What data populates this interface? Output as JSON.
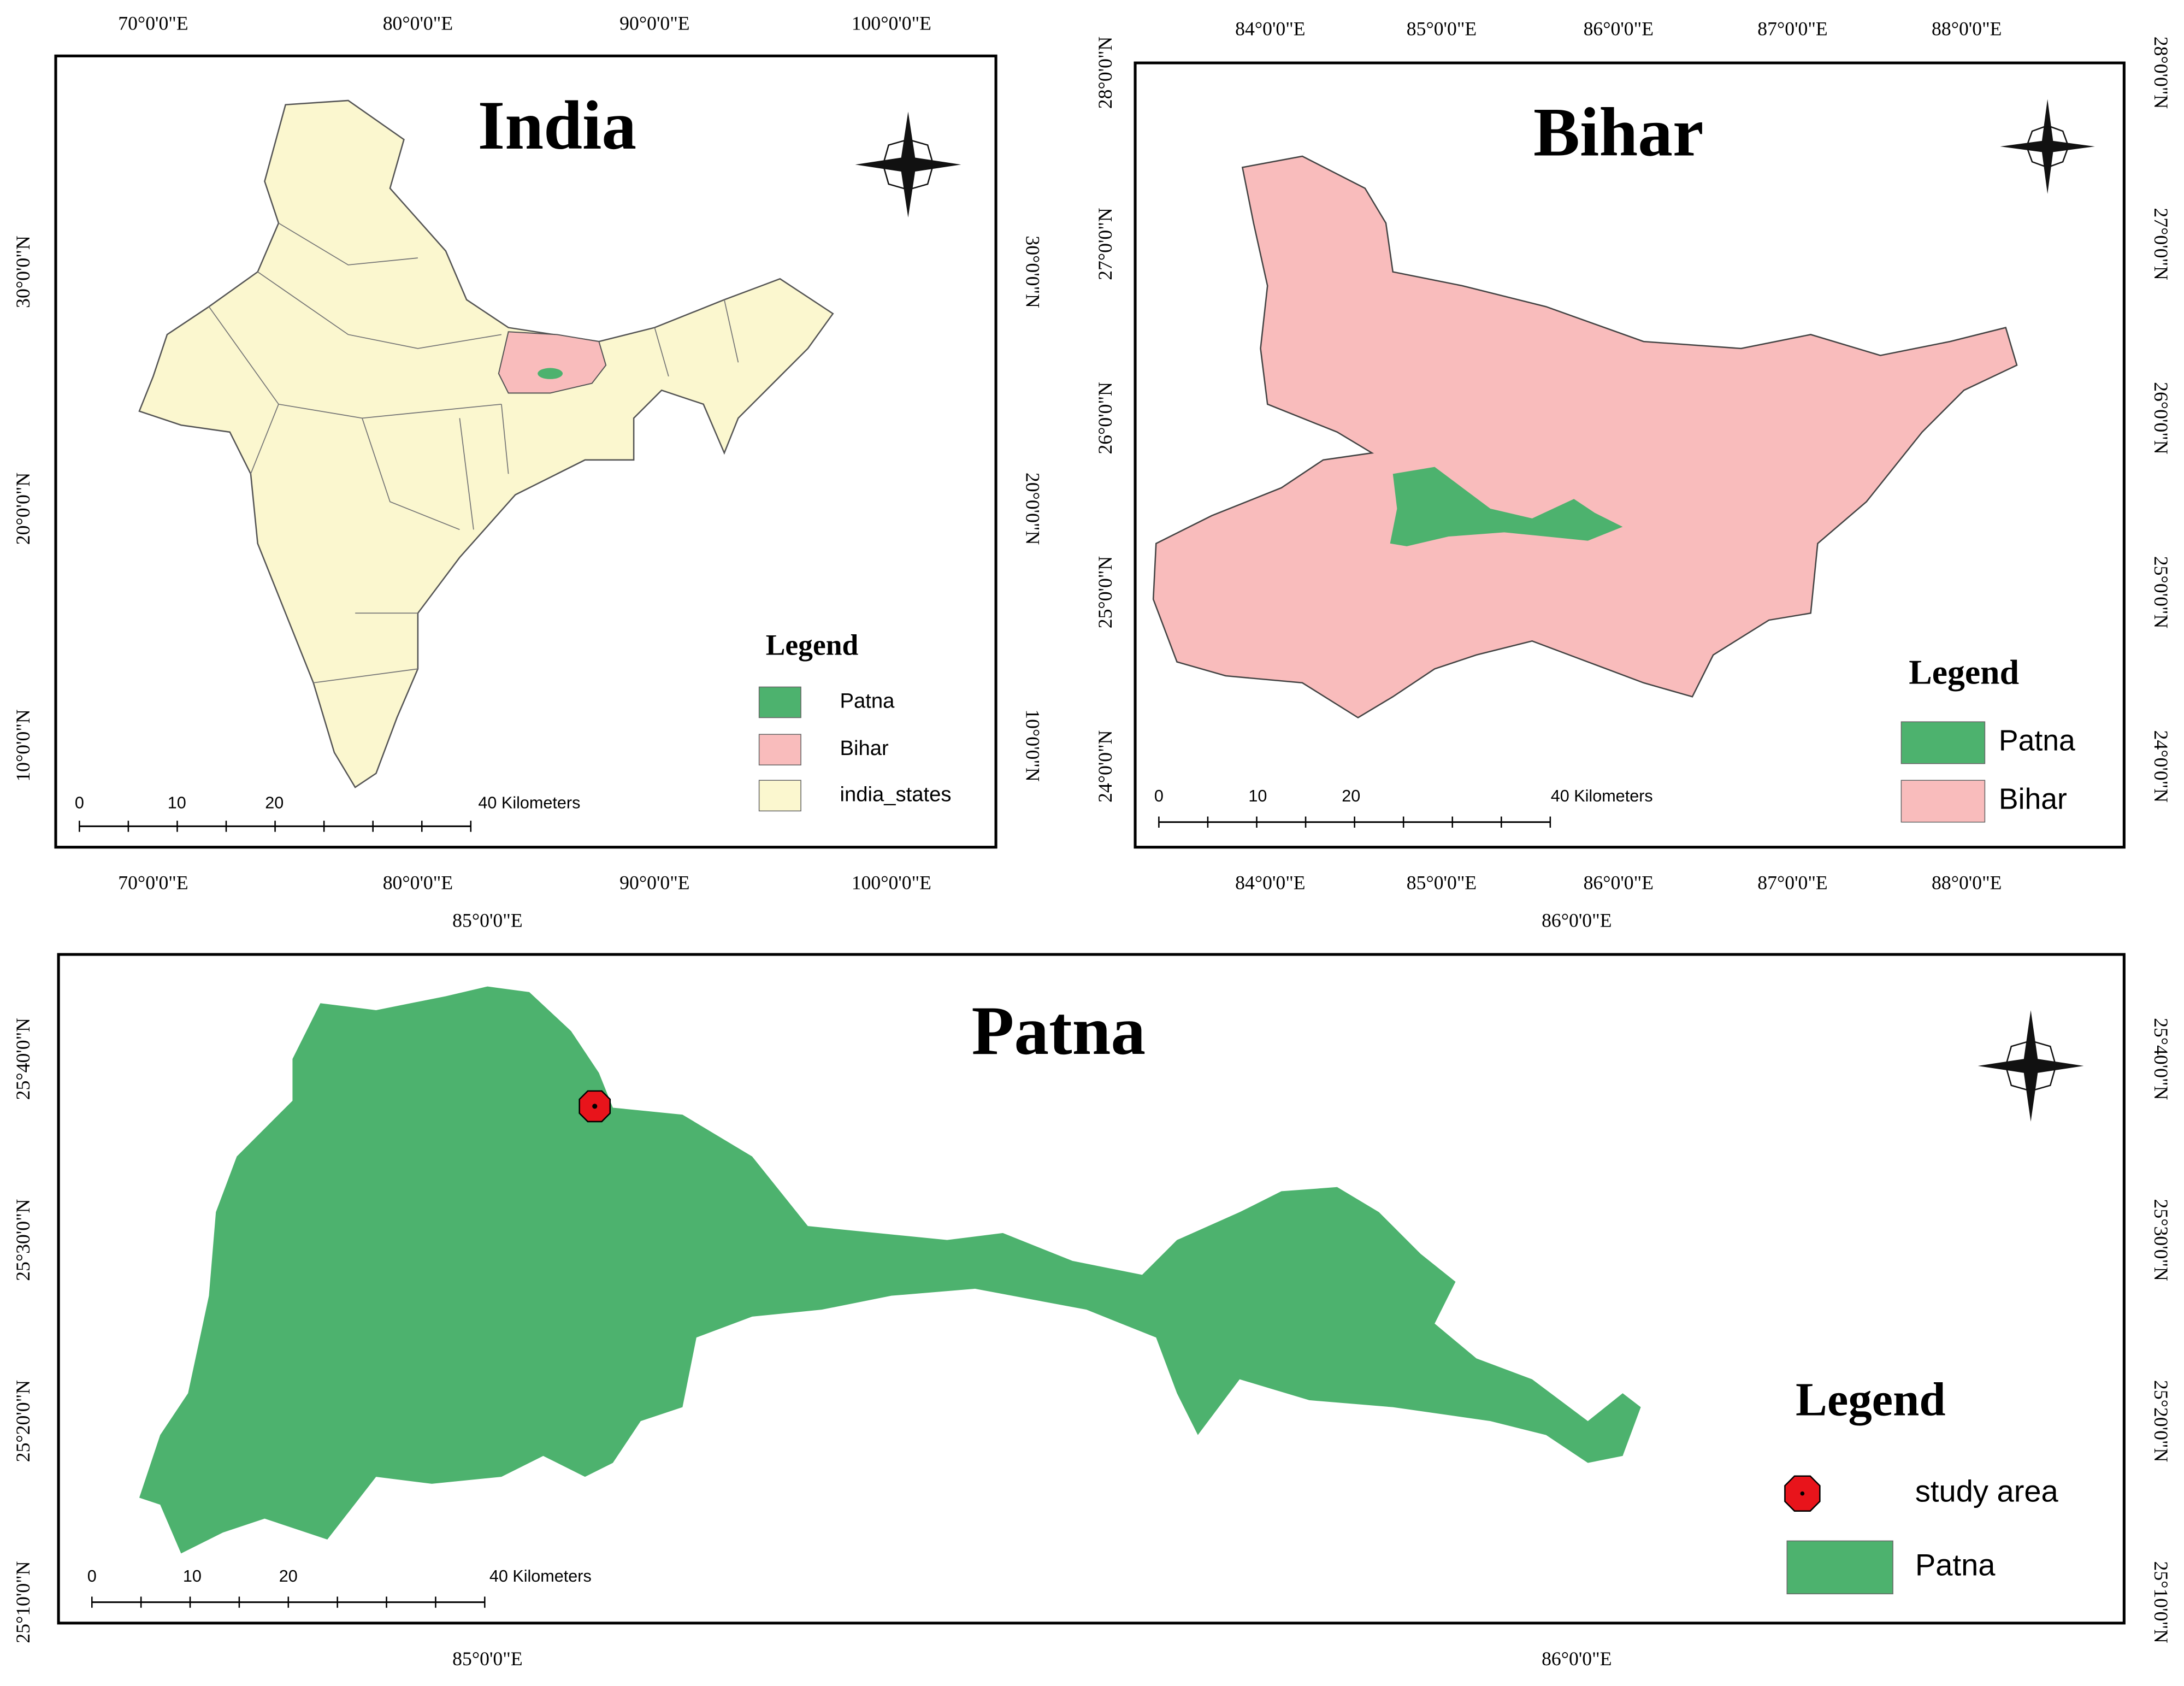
{
  "panels": [
    {
      "title": "India",
      "top_labels": [
        "70°0'0\"E",
        "80°0'0\"E",
        "90°0'0\"E",
        "100°0'0\"E"
      ],
      "bottom_labels": [
        "70°0'0\"E",
        "80°0'0\"E",
        "90°0'0\"E",
        "100°0'0\"E"
      ],
      "left_labels": [
        "30°0'0\"N",
        "20°0'0\"N",
        "10°0'0\"N"
      ],
      "right_labels": [
        "30°0'0\"N",
        "20°0'0\"N",
        "10°0'0\"N"
      ],
      "legend": {
        "title": "Legend",
        "items": [
          {
            "label": "Patna",
            "color": "#4db26e"
          },
          {
            "label": "Bihar",
            "color": "#f9bcbc"
          },
          {
            "label": "india_states",
            "color": "#fbf7cf"
          }
        ]
      },
      "scale": [
        "0",
        "10",
        "20",
        "40 Kilometers"
      ]
    },
    {
      "title": "Bihar",
      "top_labels": [
        "84°0'0\"E",
        "85°0'0\"E",
        "86°0'0\"E",
        "87°0'0\"E",
        "88°0'0\"E"
      ],
      "bottom_labels": [
        "84°0'0\"E",
        "85°0'0\"E",
        "86°0'0\"E",
        "87°0'0\"E",
        "88°0'0\"E"
      ],
      "left_labels": [
        "28°0'0\"N",
        "27°0'0\"N",
        "26°0'0\"N",
        "25°0'0\"N",
        "24°0'0\"N"
      ],
      "right_labels": [
        "28°0'0\"N",
        "27°0'0\"N",
        "26°0'0\"N",
        "25°0'0\"N",
        "24°0'0\"N"
      ],
      "legend": {
        "title": "Legend",
        "items": [
          {
            "label": "Patna",
            "color": "#4db26e"
          },
          {
            "label": "Bihar",
            "color": "#f9bcbc"
          }
        ]
      },
      "scale": [
        "0",
        "10",
        "20",
        "40 Kilometers"
      ]
    },
    {
      "title": "Patna",
      "top_labels": [
        "85°0'0\"E",
        "86°0'0\"E"
      ],
      "bottom_labels": [
        "85°0'0\"E",
        "86°0'0\"E"
      ],
      "left_labels": [
        "25°40'0\"N",
        "25°30'0\"N",
        "25°20'0\"N",
        "25°10'0\"N"
      ],
      "right_labels": [
        "25°40'0\"N",
        "25°30'0\"N",
        "25°20'0\"N",
        "25°10'0\"N"
      ],
      "legend": {
        "title": "Legend",
        "items": [
          {
            "label": "study area",
            "color": "#e8141b"
          },
          {
            "label": "Patna",
            "color": "#4db26e"
          }
        ]
      },
      "scale": [
        "0",
        "10",
        "20",
        "40 Kilometers"
      ]
    }
  ]
}
